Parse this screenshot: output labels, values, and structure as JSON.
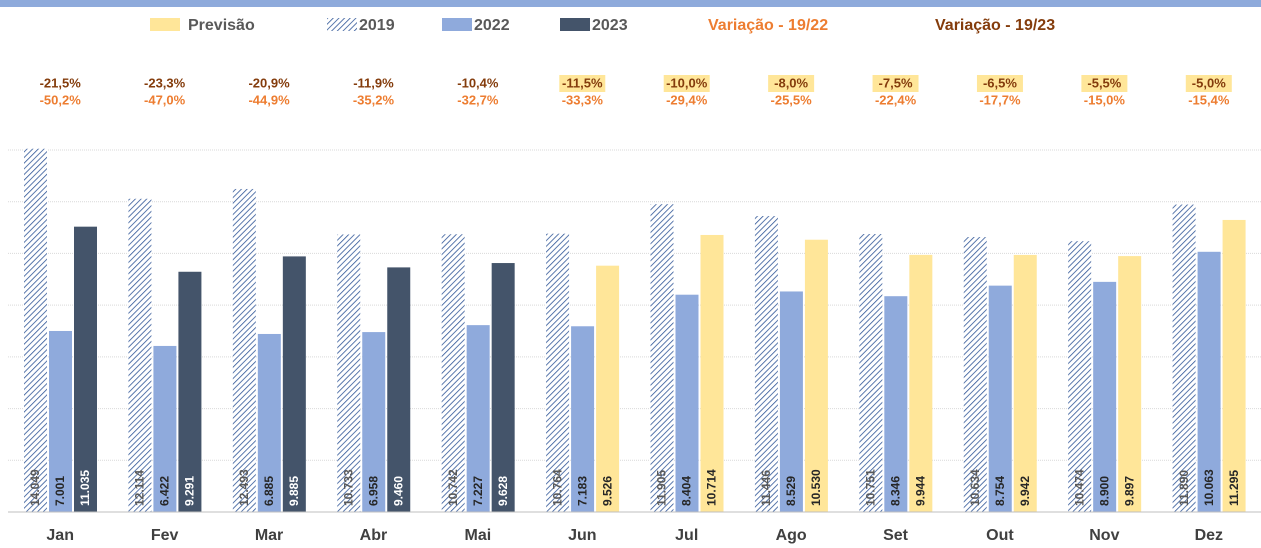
{
  "chart_data": {
    "type": "bar",
    "categories": [
      "Jan",
      "Fev",
      "Mar",
      "Abr",
      "Mai",
      "Jun",
      "Jul",
      "Ago",
      "Set",
      "Out",
      "Nov",
      "Dez"
    ],
    "series": [
      {
        "name": "Previsão",
        "color": "#ffe699",
        "values": [
          null,
          null,
          null,
          null,
          null,
          9526,
          10714,
          10530,
          9944,
          9942,
          9897,
          11295
        ],
        "value_labels": [
          null,
          null,
          null,
          null,
          null,
          "9.526",
          "10.714",
          "10.530",
          "9.944",
          "9.942",
          "9.897",
          "11.295"
        ]
      },
      {
        "name": "2019",
        "color": "#2f5597",
        "pattern": "hatch",
        "values": [
          14049,
          12114,
          12493,
          10733,
          10742,
          10764,
          11905,
          11446,
          10751,
          10634,
          10474,
          11890
        ],
        "value_labels": [
          "14.049",
          "12.114",
          "12.493",
          "10.733",
          "10.742",
          "10.764",
          "11.905",
          "11.446",
          "10.751",
          "10.634",
          "10.474",
          "11.890"
        ]
      },
      {
        "name": "2022",
        "color": "#8faadc",
        "values": [
          7001,
          6422,
          6885,
          6958,
          7227,
          7183,
          8404,
          8529,
          8346,
          8754,
          8900,
          10063
        ],
        "value_labels": [
          "7.001",
          "6.422",
          "6.885",
          "6.958",
          "7.227",
          "7.183",
          "8.404",
          "8.529",
          "8.346",
          "8.754",
          "8.900",
          "10.063"
        ]
      },
      {
        "name": "2023",
        "color": "#44546a",
        "values": [
          11035,
          9291,
          9885,
          9460,
          9628,
          null,
          null,
          null,
          null,
          null,
          null,
          null
        ],
        "value_labels": [
          "11.035",
          "9.291",
          "9.885",
          "9.460",
          "9.628",
          null,
          null,
          null,
          null,
          null,
          null,
          null
        ]
      }
    ],
    "variations": [
      {
        "name": "Variação - 19/22",
        "color": "#ed7d31",
        "values": [
          -50.2,
          -47.0,
          -44.9,
          -35.2,
          -32.7,
          -33.3,
          -29.4,
          -25.5,
          -22.4,
          -17.7,
          -15.0,
          -15.4
        ],
        "value_labels": [
          "-50,2%",
          "-47,0%",
          "-44,9%",
          "-35,2%",
          "-32,7%",
          "-33,3%",
          "-29,4%",
          "-25,5%",
          "-22,4%",
          "-17,7%",
          "-15,0%",
          "-15,4%"
        ]
      },
      {
        "name": "Variação - 19/23",
        "color": "#843c0c",
        "values": [
          -21.5,
          -23.3,
          -20.9,
          -11.9,
          -10.4,
          -11.5,
          -10.0,
          -8.0,
          -7.5,
          -6.5,
          -5.5,
          -5.0
        ],
        "value_labels": [
          "-21,5%",
          "-23,3%",
          "-20,9%",
          "-11,9%",
          "-10,4%",
          "-11,5%",
          "-10,0%",
          "-8,0%",
          "-7,5%",
          "-6,5%",
          "-5,5%",
          "-5,0%"
        ]
      }
    ],
    "ylim": [
      0,
      14000
    ],
    "yticks": [
      0,
      2000,
      4000,
      6000,
      8000,
      10000,
      12000,
      14000
    ],
    "grid": true
  }
}
